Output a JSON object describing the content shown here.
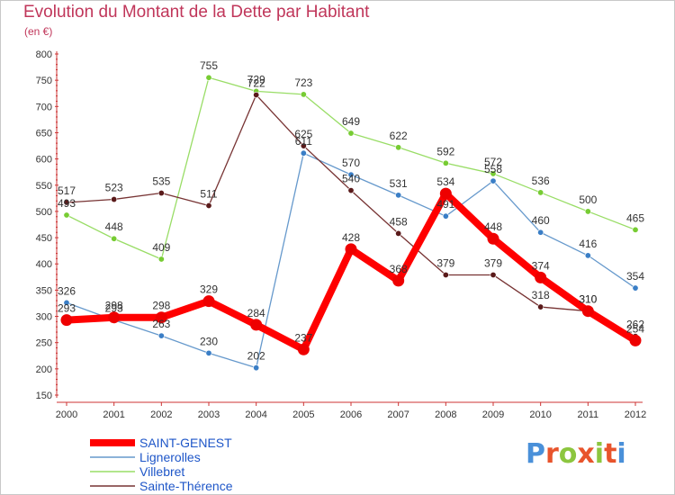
{
  "title": "Evolution du Montant de la Dette par Habitant",
  "unit_label": "(en €)",
  "logo": {
    "text": "Proxiti",
    "letter_colors": [
      "#4a90d9",
      "#e8542c",
      "#8cc63f",
      "#e8542c",
      "#8cc63f",
      "#e8542c",
      "#4a90d9"
    ]
  },
  "chart_data": {
    "type": "line",
    "x": [
      "2000",
      "2001",
      "2002",
      "2003",
      "2004",
      "2005",
      "2006",
      "2007",
      "2008",
      "2009",
      "2010",
      "2011",
      "2012"
    ],
    "ylim": [
      150,
      800
    ],
    "yticks": [
      150,
      200,
      250,
      300,
      350,
      400,
      450,
      500,
      550,
      600,
      650,
      700,
      750,
      800
    ],
    "grid": false,
    "legend_position": "bottom-left",
    "series": [
      {
        "name": "SAINT-GENEST",
        "color": "#ff0000",
        "marker_color": "#cc0000",
        "emphasis": true,
        "values": [
          293,
          298,
          298,
          329,
          284,
          237,
          428,
          368,
          534,
          448,
          374,
          310,
          254
        ],
        "labels": [
          "293",
          "298",
          "298",
          "329",
          "284",
          "237",
          "428",
          "368",
          "534",
          "448",
          "374",
          "310",
          "254"
        ]
      },
      {
        "name": "Lignerolles",
        "color": "#6699cc",
        "marker_color": "#3a7ec6",
        "values": [
          326,
          293,
          263,
          230,
          202,
          611,
          570,
          531,
          491,
          558,
          460,
          416,
          354
        ],
        "labels": [
          "326",
          "293",
          "263",
          "230",
          "202",
          "611",
          "570",
          "531",
          "491",
          "558",
          "460",
          "416",
          "354"
        ]
      },
      {
        "name": "Villebret",
        "color": "#99dd66",
        "marker_color": "#77cc33",
        "values": [
          493,
          448,
          409,
          null,
          729,
          723,
          649,
          622,
          592,
          572,
          536,
          500,
          465
        ],
        "labels": [
          "493",
          "448",
          "409",
          "755",
          "729",
          "723",
          "649",
          "622",
          "592",
          "572",
          "536",
          "500",
          "465"
        ],
        "values_full": [
          493,
          448,
          409,
          755,
          729,
          723,
          649,
          622,
          592,
          572,
          536,
          500,
          465
        ]
      },
      {
        "name": "Sainte-Thérence",
        "color": "#773333",
        "marker_color": "#5a1a1a",
        "values": [
          517,
          523,
          535,
          511,
          722,
          625,
          540,
          458,
          379,
          379,
          318,
          310,
          262
        ],
        "labels": [
          "517",
          "523",
          "535",
          "511",
          "722",
          "625",
          "540",
          "458",
          "379",
          "379",
          "318",
          "310",
          "262"
        ]
      }
    ]
  }
}
